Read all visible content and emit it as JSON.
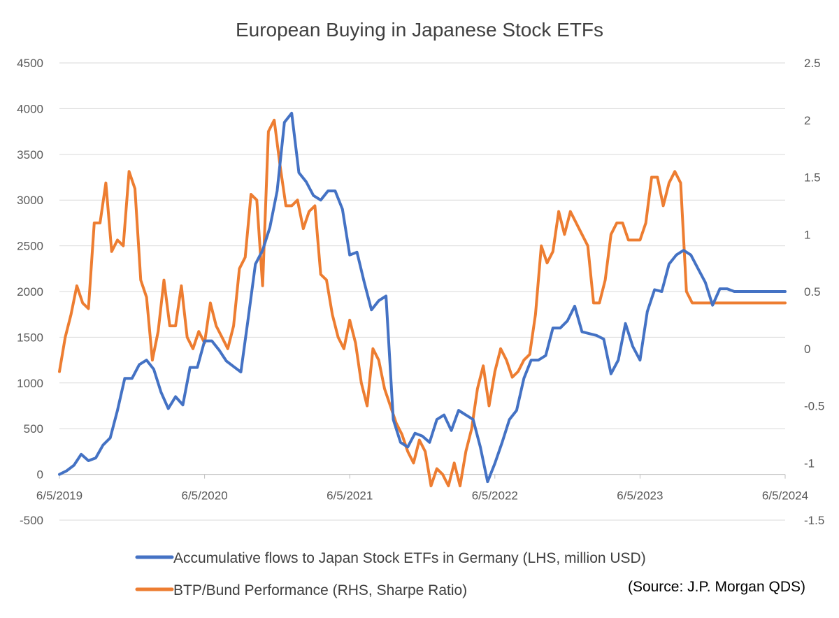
{
  "chart_data": {
    "type": "line",
    "title": "European Buying in Japanese Stock ETFs",
    "x_tick_labels": [
      "6/5/2019",
      "6/5/2020",
      "6/5/2021",
      "6/5/2022",
      "6/5/2023",
      "6/5/2024"
    ],
    "x_range": [
      2019.43,
      2024.43
    ],
    "y_left": {
      "ylim": [
        -500,
        4500
      ],
      "ticks": [
        "4500",
        "4000",
        "3500",
        "3000",
        "2500",
        "2000",
        "1500",
        "1000",
        "500",
        "0",
        "-500"
      ]
    },
    "y_right": {
      "ylim": [
        -1.5,
        2.5
      ],
      "ticks": [
        "2.5",
        "2",
        "1.5",
        "1",
        "0.5",
        "0",
        "-0.5",
        "-1",
        "-1.5"
      ]
    },
    "series": [
      {
        "name": "Accumulative flows to Japan Stock ETFs in Germany (LHS, million USD)",
        "axis": "left",
        "color": "#4472c4",
        "x": [
          2019.43,
          2019.48,
          2019.53,
          2019.58,
          2019.63,
          2019.68,
          2019.73,
          2019.78,
          2019.83,
          2019.88,
          2019.93,
          2019.98,
          2020.03,
          2020.08,
          2020.13,
          2020.18,
          2020.23,
          2020.28,
          2020.33,
          2020.38,
          2020.43,
          2020.48,
          2020.53,
          2020.58,
          2020.63,
          2020.68,
          2020.73,
          2020.78,
          2020.83,
          2020.88,
          2020.93,
          2020.98,
          2021.03,
          2021.08,
          2021.13,
          2021.18,
          2021.23,
          2021.28,
          2021.33,
          2021.38,
          2021.43,
          2021.48,
          2021.53,
          2021.58,
          2021.63,
          2021.68,
          2021.73,
          2021.78,
          2021.83,
          2021.88,
          2021.93,
          2021.98,
          2022.03,
          2022.08,
          2022.13,
          2022.18,
          2022.23,
          2022.28,
          2022.33,
          2022.38,
          2022.43,
          2022.48,
          2022.53,
          2022.58,
          2022.63,
          2022.68,
          2022.73,
          2022.78,
          2022.83,
          2022.88,
          2022.93,
          2022.98,
          2023.03,
          2023.08,
          2023.13,
          2023.18,
          2023.23,
          2023.28,
          2023.33,
          2023.38,
          2023.43,
          2023.48,
          2023.53,
          2023.58,
          2023.63,
          2023.68,
          2023.73,
          2023.78,
          2023.83,
          2023.88,
          2023.93,
          2023.98,
          2024.03,
          2024.08,
          2024.13,
          2024.18,
          2024.23,
          2024.28,
          2024.33,
          2024.38,
          2024.43
        ],
        "values": [
          0,
          40,
          100,
          220,
          150,
          180,
          320,
          400,
          700,
          1050,
          1050,
          1200,
          1250,
          1150,
          900,
          720,
          850,
          760,
          1170,
          1170,
          1460,
          1460,
          1360,
          1240,
          1180,
          1120,
          1700,
          2300,
          2450,
          2700,
          3100,
          3850,
          3950,
          3300,
          3200,
          3050,
          3000,
          3100,
          3100,
          2900,
          2400,
          2430,
          2100,
          1800,
          1900,
          1950,
          600,
          350,
          300,
          450,
          420,
          350,
          600,
          650,
          480,
          700,
          650,
          600,
          300,
          -80,
          120,
          350,
          600,
          700,
          1050,
          1250,
          1250,
          1300,
          1600,
          1600,
          1680,
          1840,
          1560,
          1540,
          1520,
          1480,
          1100,
          1250,
          1650,
          1400,
          1250,
          1780,
          2020,
          2000,
          2300,
          2400,
          2450,
          2400,
          2250,
          2100,
          1850,
          2030,
          2030,
          2000,
          2000,
          2000,
          2000,
          2000,
          2000,
          2000,
          2000
        ]
      },
      {
        "name": "BTP/Bund Performance (RHS, Sharpe Ratio)",
        "axis": "right",
        "color": "#ed7d31",
        "x": [
          2019.43,
          2019.47,
          2019.51,
          2019.55,
          2019.59,
          2019.63,
          2019.67,
          2019.71,
          2019.75,
          2019.79,
          2019.83,
          2019.87,
          2019.91,
          2019.95,
          2019.99,
          2020.03,
          2020.07,
          2020.11,
          2020.15,
          2020.19,
          2020.23,
          2020.27,
          2020.31,
          2020.35,
          2020.39,
          2020.43,
          2020.47,
          2020.51,
          2020.55,
          2020.59,
          2020.63,
          2020.67,
          2020.71,
          2020.75,
          2020.79,
          2020.83,
          2020.87,
          2020.91,
          2020.95,
          2020.99,
          2021.03,
          2021.07,
          2021.11,
          2021.15,
          2021.19,
          2021.23,
          2021.27,
          2021.31,
          2021.35,
          2021.39,
          2021.43,
          2021.47,
          2021.51,
          2021.55,
          2021.59,
          2021.63,
          2021.67,
          2021.71,
          2021.75,
          2021.79,
          2021.83,
          2021.87,
          2021.91,
          2021.95,
          2021.99,
          2022.03,
          2022.07,
          2022.11,
          2022.15,
          2022.19,
          2022.23,
          2022.27,
          2022.31,
          2022.35,
          2022.39,
          2022.43,
          2022.47,
          2022.51,
          2022.55,
          2022.59,
          2022.63,
          2022.67,
          2022.71,
          2022.75,
          2022.79,
          2022.83,
          2022.87,
          2022.91,
          2022.95,
          2022.99,
          2023.03,
          2023.07,
          2023.11,
          2023.15,
          2023.19,
          2023.23,
          2023.27,
          2023.31,
          2023.35,
          2023.39,
          2023.43,
          2023.47,
          2023.51,
          2023.55,
          2023.59,
          2023.63,
          2023.67,
          2023.71,
          2023.75,
          2023.79,
          2023.83,
          2023.87,
          2023.91,
          2023.95,
          2023.99,
          2024.03,
          2024.07,
          2024.11,
          2024.15,
          2024.19,
          2024.23,
          2024.27,
          2024.31,
          2024.35,
          2024.39,
          2024.43
        ],
        "values": [
          -0.2,
          0.1,
          0.3,
          0.55,
          0.4,
          0.35,
          1.1,
          1.1,
          1.45,
          0.85,
          0.95,
          0.9,
          1.55,
          1.4,
          0.6,
          0.45,
          -0.1,
          0.15,
          0.6,
          0.2,
          0.2,
          0.55,
          0.1,
          0.0,
          0.15,
          0.05,
          0.4,
          0.2,
          0.1,
          0.0,
          0.2,
          0.7,
          0.8,
          1.35,
          1.3,
          0.55,
          1.9,
          2.0,
          1.6,
          1.25,
          1.25,
          1.3,
          1.05,
          1.2,
          1.25,
          0.65,
          0.6,
          0.3,
          0.1,
          0.0,
          0.25,
          0.05,
          -0.3,
          -0.5,
          0.0,
          -0.1,
          -0.35,
          -0.5,
          -0.65,
          -0.75,
          -0.9,
          -1.0,
          -0.8,
          -0.9,
          -1.2,
          -1.05,
          -1.1,
          -1.2,
          -1.0,
          -1.2,
          -0.9,
          -0.7,
          -0.35,
          -0.15,
          -0.5,
          -0.2,
          0.0,
          -0.1,
          -0.25,
          -0.2,
          -0.1,
          -0.05,
          0.3,
          0.9,
          0.75,
          0.85,
          1.2,
          1.0,
          1.2,
          1.1,
          1.0,
          0.9,
          0.4,
          0.4,
          0.6,
          1.0,
          1.1,
          1.1,
          0.95,
          0.95,
          0.95,
          1.1,
          1.5,
          1.5,
          1.25,
          1.45,
          1.55,
          1.45,
          0.5,
          0.4,
          0.4,
          0.4,
          0.4,
          0.4,
          0.4,
          0.4,
          0.4,
          0.4,
          0.4,
          0.4,
          0.4,
          0.4,
          0.4,
          0.4,
          0.4,
          0.4
        ]
      }
    ],
    "legend_position": "bottom",
    "source": "(Source: J.P. Morgan QDS)"
  }
}
